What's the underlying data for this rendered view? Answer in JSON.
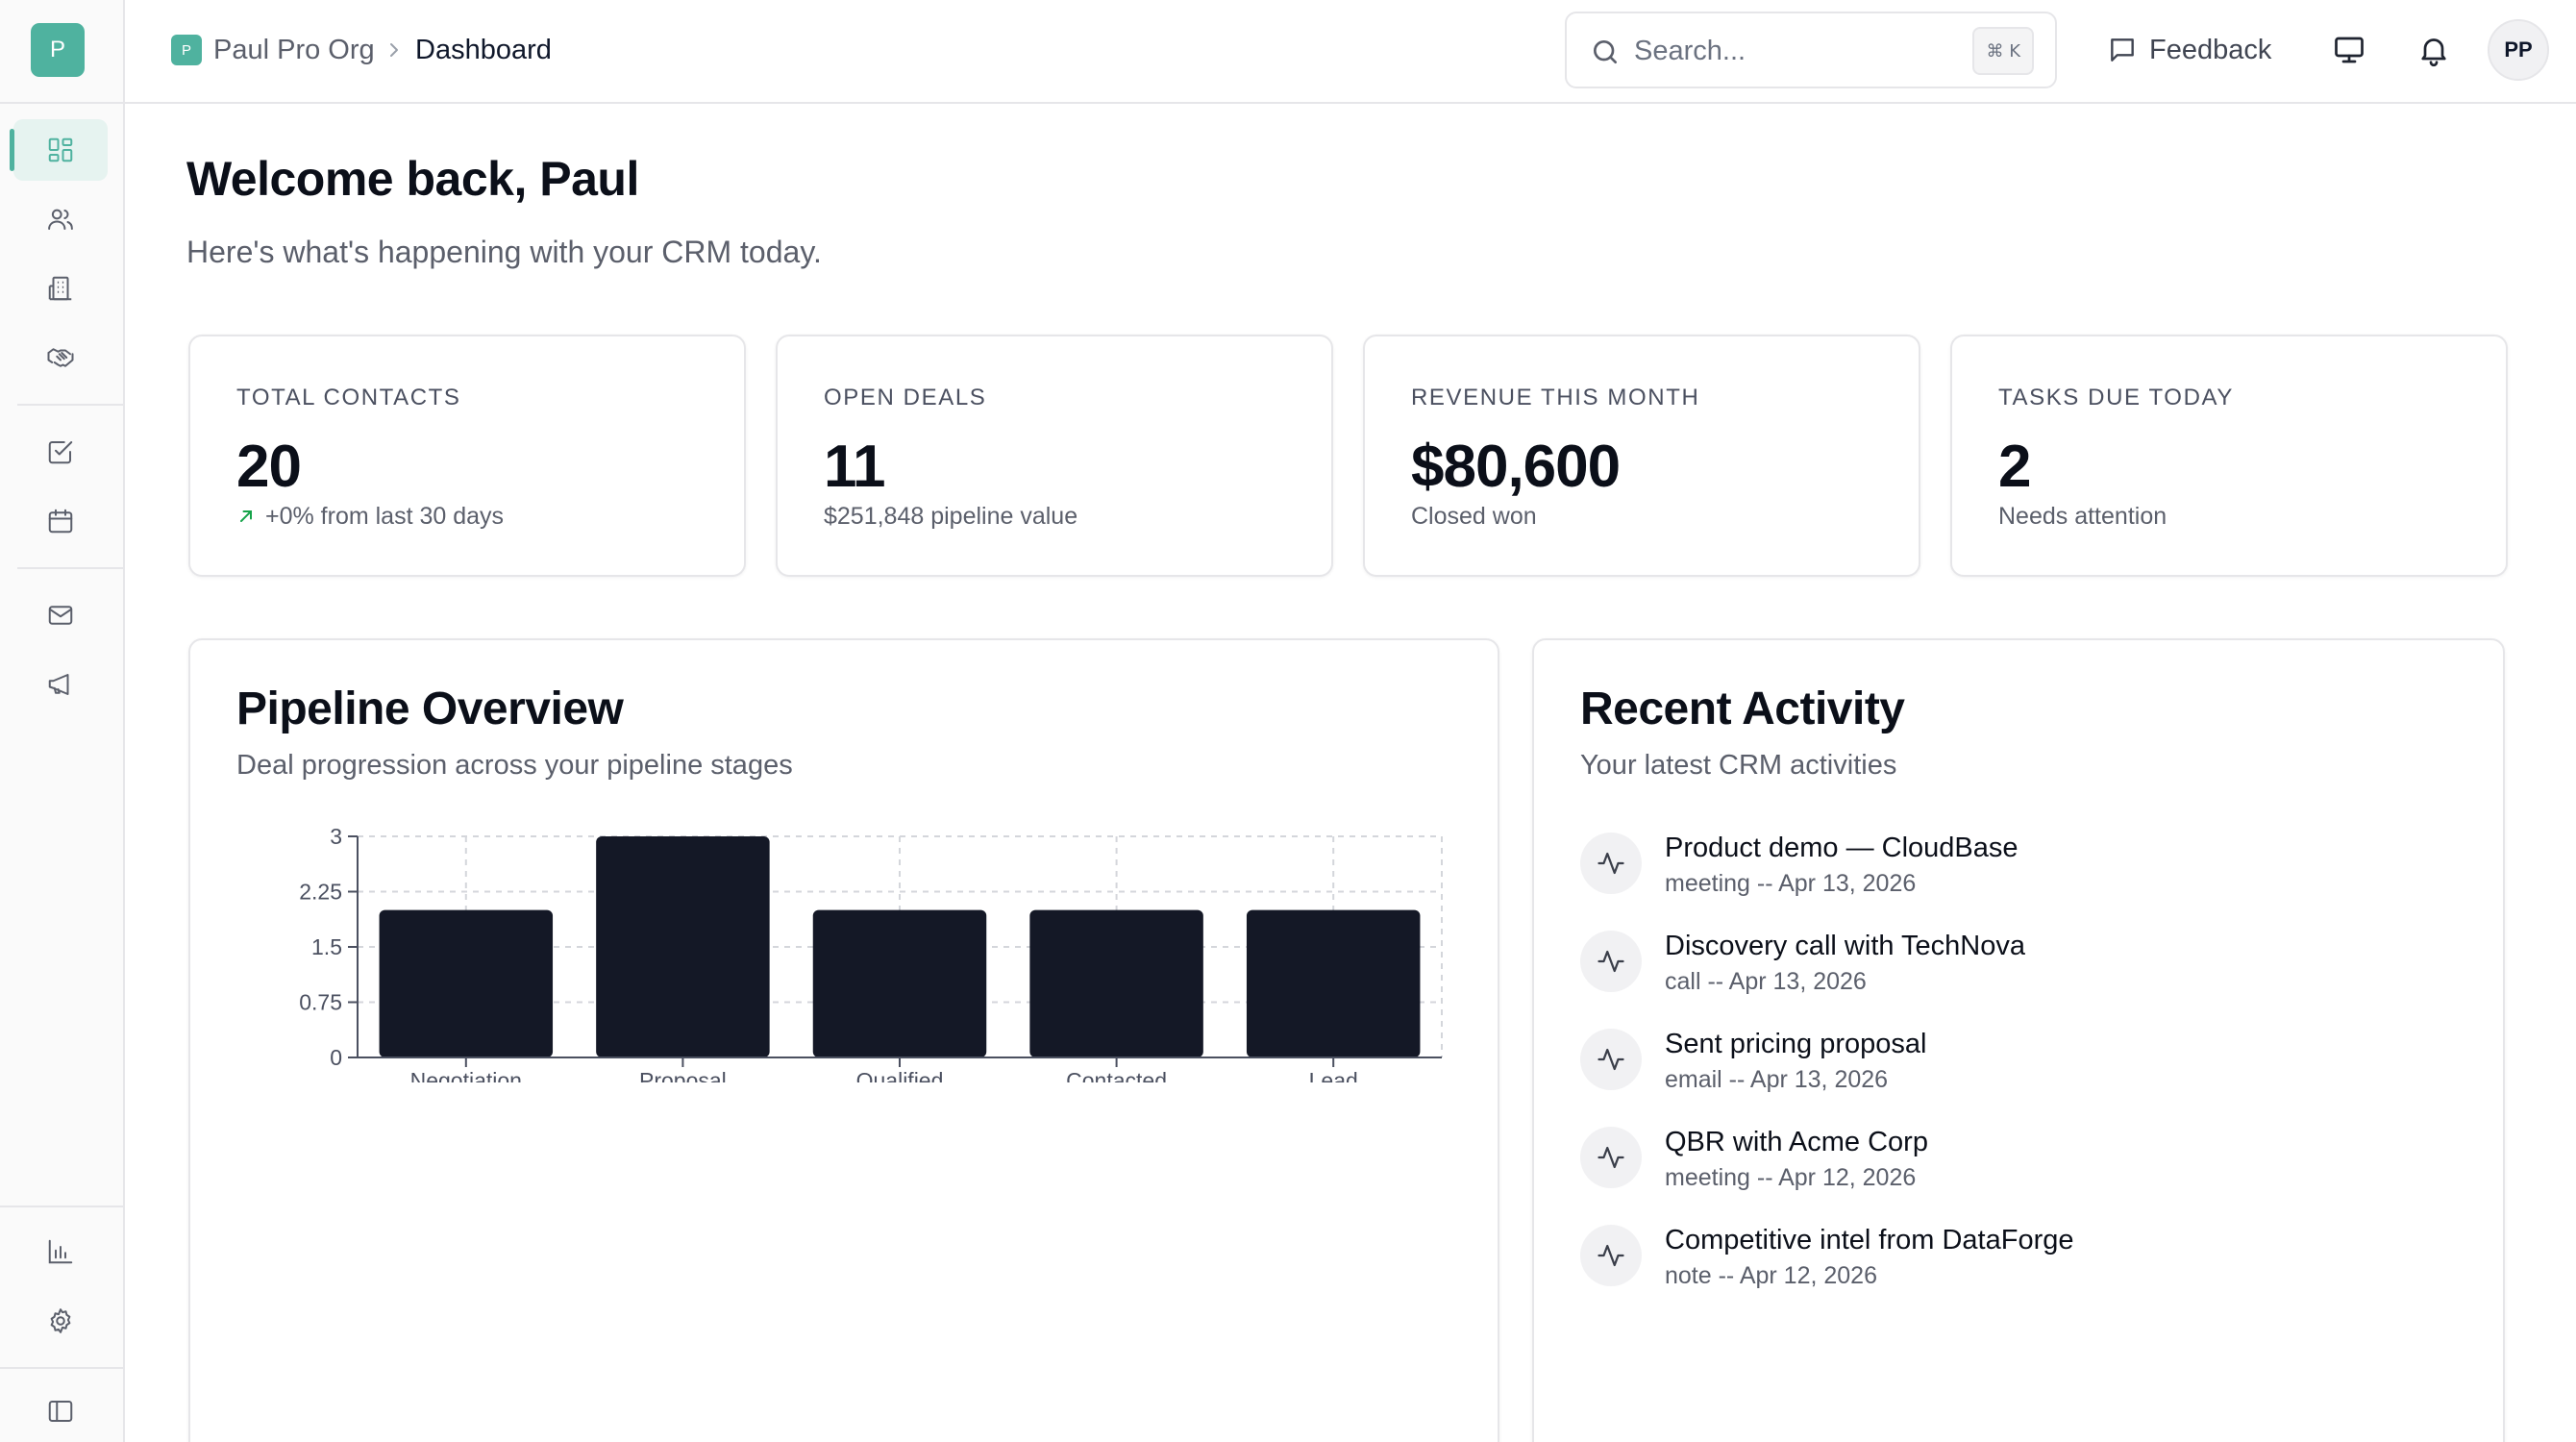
{
  "sidebar": {
    "org_initial": "P",
    "icons": [
      "dashboard-icon",
      "contacts-icon",
      "companies-icon",
      "deals-icon",
      "tasks-icon",
      "calendar-icon",
      "email-icon",
      "campaigns-icon",
      "reports-icon",
      "settings-icon",
      "collapse-sidebar-icon"
    ],
    "accent": "#4fb29f"
  },
  "header": {
    "org_initial": "P",
    "org_name": "Paul Pro Org",
    "current_page": "Dashboard",
    "search_placeholder": "Search...",
    "search_shortcut": "⌘ K",
    "feedback_label": "Feedback",
    "avatar_initials": "PP"
  },
  "welcome": {
    "title": "Welcome back, Paul",
    "subtitle": "Here's what's happening with your CRM today."
  },
  "stats": [
    {
      "label": "TOTAL CONTACTS",
      "value": "20",
      "note": "+0% from last 30 days"
    },
    {
      "label": "OPEN DEALS",
      "value": "11",
      "note": "$251,848 pipeline value"
    },
    {
      "label": "REVENUE THIS MONTH",
      "value": "$80,600",
      "note": "Closed won"
    },
    {
      "label": "TASKS DUE TODAY",
      "value": "2",
      "note": "Needs attention"
    }
  ],
  "pipeline": {
    "title": "Pipeline Overview",
    "subtitle": "Deal progression across your pipeline stages"
  },
  "chart_data": {
    "type": "bar",
    "categories": [
      "Negotiation",
      "Proposal",
      "Qualified",
      "Contacted",
      "Lead"
    ],
    "values": [
      2,
      3,
      2,
      2,
      2
    ],
    "yticks": [
      "0",
      "0.75",
      "1.5",
      "2.25",
      "3"
    ],
    "ylim": [
      0,
      3
    ],
    "grid": true,
    "bar_color": "#141826"
  },
  "activity": {
    "title": "Recent Activity",
    "subtitle": "Your latest CRM activities",
    "items": [
      {
        "title": "Product demo — CloudBase",
        "meta": "meeting -- Apr 13, 2026"
      },
      {
        "title": "Discovery call with TechNova",
        "meta": "call -- Apr 13, 2026"
      },
      {
        "title": "Sent pricing proposal",
        "meta": "email -- Apr 13, 2026"
      },
      {
        "title": "QBR with Acme Corp",
        "meta": "meeting -- Apr 12, 2026"
      },
      {
        "title": "Competitive intel from DataForge",
        "meta": "note -- Apr 12, 2026"
      }
    ]
  }
}
